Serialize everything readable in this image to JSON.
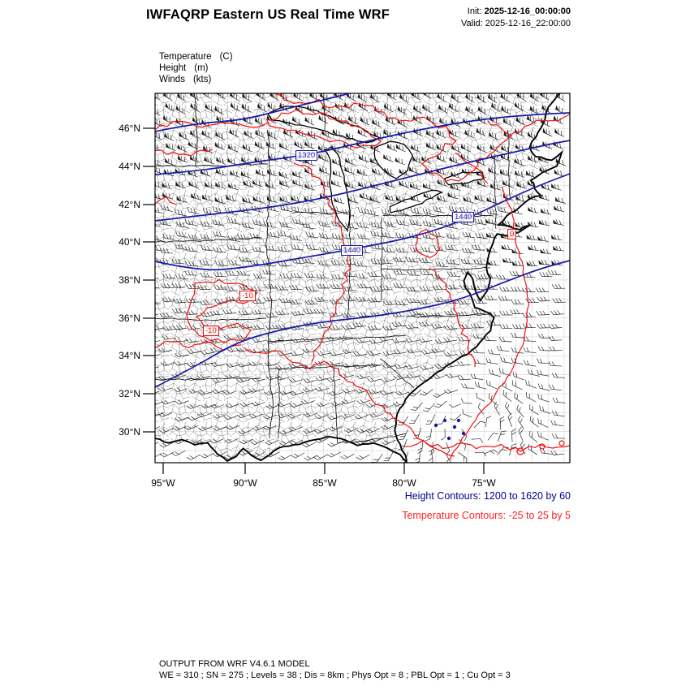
{
  "header": {
    "title": "IWFAQRP Eastern US Real Time WRF",
    "init_label": "Init:",
    "init_value": "2025-12-16_00:00:00",
    "valid_label": "Valid:",
    "valid_value": "2025-12-16_22:00:00"
  },
  "legend": {
    "items": [
      {
        "label": "Temperature",
        "unit": "(C)"
      },
      {
        "label": "Height",
        "unit": "(m)"
      },
      {
        "label": "Winds",
        "unit": "(kts)"
      }
    ]
  },
  "map": {
    "lat_labels": [
      "46°N",
      "44°N",
      "42°N",
      "40°N",
      "38°N",
      "36°N",
      "34°N",
      "32°N",
      "30°N"
    ],
    "lon_labels": [
      "95°W",
      "90°W",
      "85°W",
      "80°W",
      "75°W"
    ],
    "height_contour_labels": [
      "1320",
      "1440",
      "1440"
    ],
    "temp_contour_labels": [
      "-10",
      "-10",
      "0"
    ],
    "colors": {
      "height_contour": "#1a1aa6",
      "temperature_contour": "#ee1111",
      "geography": "#000000",
      "wind_barb": "#1c1c1c",
      "graticule": "#c9c9c9",
      "height_caption": "#00008b",
      "temperature_caption": "#ff2222"
    }
  },
  "captions": {
    "height": "Height Contours: 1200 to 1620 by 60",
    "temperature": "Temperature Contours: -25 to 25 by 5"
  },
  "footer": {
    "line1": "OUTPUT FROM WRF V4.6.1 MODEL",
    "line2": "WE = 310 ; SN = 275 ; Levels = 38 ; Dis = 8km ; Phys Opt = 8 ; PBL Opt = 1 ; Cu Opt = 3"
  }
}
